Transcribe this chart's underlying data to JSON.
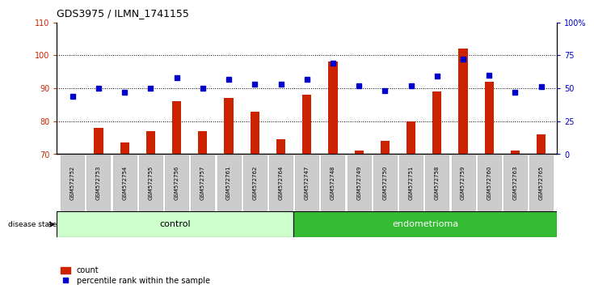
{
  "title": "GDS3975 / ILMN_1741155",
  "samples": [
    "GSM572752",
    "GSM572753",
    "GSM572754",
    "GSM572755",
    "GSM572756",
    "GSM572757",
    "GSM572761",
    "GSM572762",
    "GSM572764",
    "GSM572747",
    "GSM572748",
    "GSM572749",
    "GSM572750",
    "GSM572751",
    "GSM572758",
    "GSM572759",
    "GSM572760",
    "GSM572763",
    "GSM572765"
  ],
  "counts": [
    70,
    78,
    73.5,
    77,
    86,
    77,
    87,
    83,
    74.5,
    88,
    98,
    71,
    74,
    80,
    89,
    102,
    92,
    71,
    76
  ],
  "percentiles": [
    44,
    50,
    47,
    50,
    58,
    50,
    57,
    53,
    53,
    57,
    69,
    52,
    48,
    52,
    59,
    72,
    60,
    47,
    51
  ],
  "n_control": 9,
  "n_endometrioma": 10,
  "control_label": "control",
  "endometrioma_label": "endometrioma",
  "disease_state_label": "disease state",
  "ylim_left": [
    70,
    110
  ],
  "ylim_right": [
    0,
    100
  ],
  "yticks_left": [
    70,
    80,
    90,
    100,
    110
  ],
  "yticks_right": [
    0,
    25,
    50,
    75,
    100
  ],
  "ytick_labels_right": [
    "0",
    "25",
    "50",
    "75",
    "100%"
  ],
  "bar_color": "#cc2200",
  "dot_color": "#0000cc",
  "bar_width": 0.35,
  "control_bg": "#ccffcc",
  "endometrioma_bg": "#33bb33",
  "xticklabel_bg": "#cccccc",
  "legend_count_label": "count",
  "legend_pct_label": "percentile rank within the sample"
}
